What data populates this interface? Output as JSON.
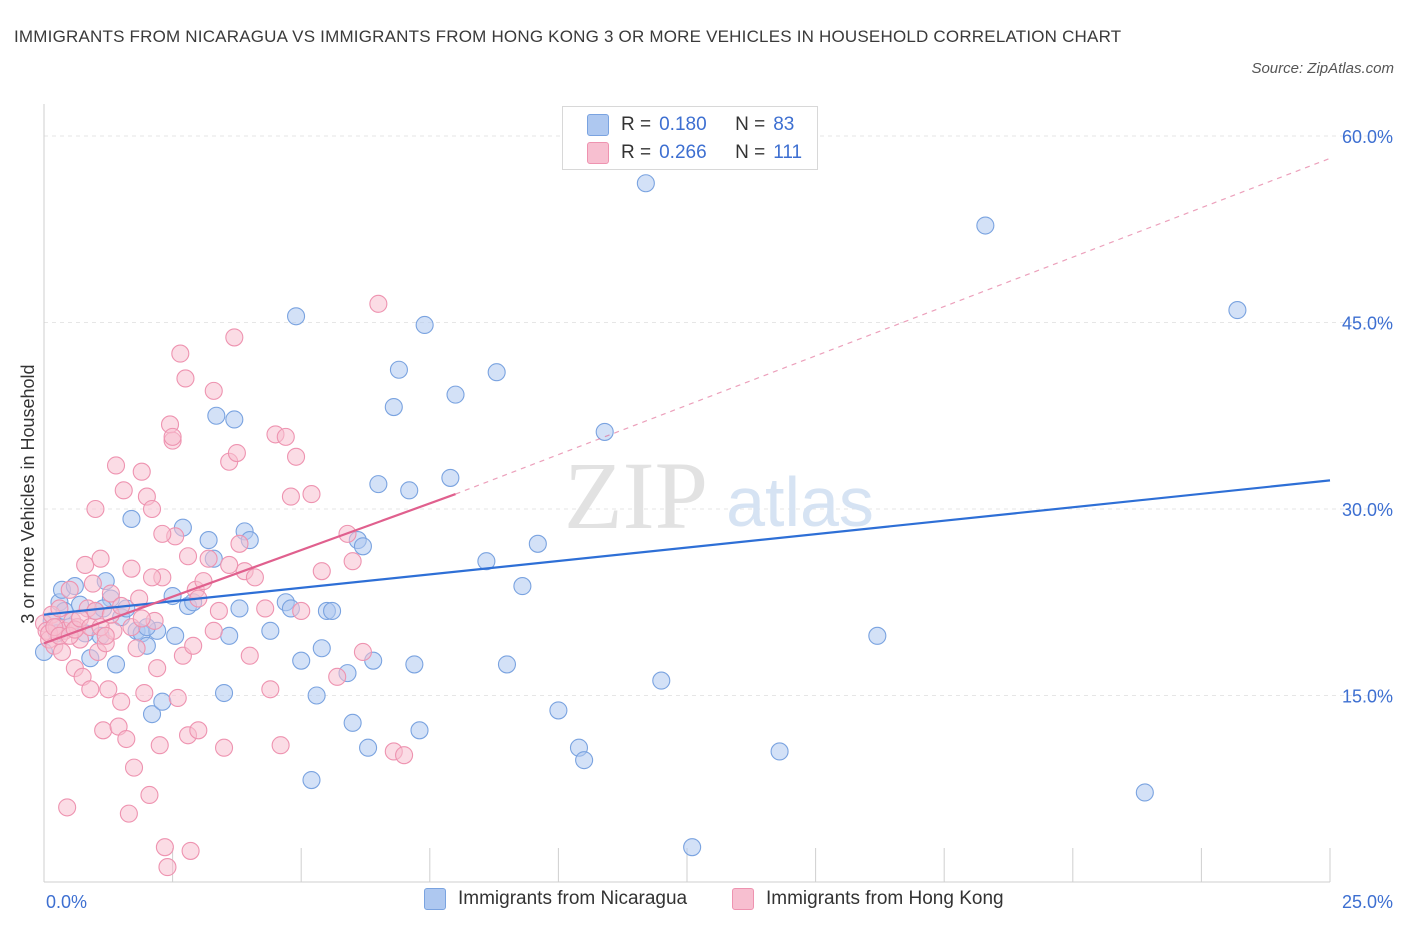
{
  "title": "IMMIGRANTS FROM NICARAGUA VS IMMIGRANTS FROM HONG KONG 3 OR MORE VEHICLES IN HOUSEHOLD CORRELATION CHART",
  "source": "Source: ZipAtlas.com",
  "watermark": {
    "zip": "ZIP",
    "atlas": "atlas"
  },
  "colors": {
    "nicaragua_fill": "#aec8f0",
    "nicaragua_stroke": "#7aa3e0",
    "nicaragua_line": "#2e6fd6",
    "hongkong_fill": "#f7bfd0",
    "hongkong_stroke": "#ee93b0",
    "hongkong_line": "#e0608e",
    "axis_label": "#3d6fd1",
    "grid": "#e6e6e6"
  },
  "legend": {
    "rows": [
      {
        "r_label": "R =",
        "r_value": "0.180",
        "n_label": "N =",
        "n_value": "83",
        "color": "#aec8f0"
      },
      {
        "r_label": "R =",
        "r_value": "0.266",
        "n_label": "N =",
        "n_value": "111",
        "color": "#f7bfd0"
      }
    ]
  },
  "bottom_legend": [
    {
      "label": "Immigrants from Nicaragua",
      "color": "#aec8f0"
    },
    {
      "label": "Immigrants from Hong Kong",
      "color": "#f7bfd0"
    }
  ],
  "chart_data": {
    "type": "scatter",
    "title": "IMMIGRANTS FROM NICARAGUA VS IMMIGRANTS FROM HONG KONG 3 OR MORE VEHICLES IN HOUSEHOLD CORRELATION CHART",
    "xlabel": "",
    "ylabel": "3 or more Vehicles in Household",
    "xlim": [
      0,
      25
    ],
    "ylim": [
      0,
      60
    ],
    "x_tick_labels": [
      "0.0%",
      "25.0%"
    ],
    "y_ticks": [
      15,
      30,
      45,
      60
    ],
    "y_tick_labels": [
      "15.0%",
      "30.0%",
      "45.0%",
      "60.0%"
    ],
    "grid": true,
    "legend_position": "top-center",
    "series": [
      {
        "name": "Immigrants from Nicaragua",
        "r": 0.18,
        "n": 83,
        "trend": {
          "x": [
            0,
            25
          ],
          "y": [
            21.5,
            32.3
          ],
          "dashed_to": null
        },
        "points": [
          [
            0.0,
            18.5
          ],
          [
            0.3,
            22.5
          ],
          [
            0.35,
            23.5
          ],
          [
            0.4,
            21.8
          ],
          [
            0.5,
            20.5
          ],
          [
            0.6,
            23.8
          ],
          [
            0.7,
            22.3
          ],
          [
            0.8,
            20.0
          ],
          [
            0.9,
            18.0
          ],
          [
            1.0,
            21.8
          ],
          [
            1.1,
            19.8
          ],
          [
            1.2,
            24.2
          ],
          [
            1.3,
            22.8
          ],
          [
            1.4,
            17.5
          ],
          [
            1.5,
            21.3
          ],
          [
            1.6,
            22.0
          ],
          [
            1.7,
            29.2
          ],
          [
            1.8,
            20.2
          ],
          [
            1.9,
            20.0
          ],
          [
            2.0,
            19.0
          ],
          [
            2.1,
            13.5
          ],
          [
            2.2,
            20.2
          ],
          [
            2.3,
            14.5
          ],
          [
            2.5,
            23.0
          ],
          [
            2.55,
            19.8
          ],
          [
            2.7,
            28.5
          ],
          [
            2.8,
            22.2
          ],
          [
            2.9,
            22.5
          ],
          [
            3.2,
            27.5
          ],
          [
            3.3,
            26.0
          ],
          [
            3.35,
            37.5
          ],
          [
            3.5,
            15.2
          ],
          [
            3.6,
            19.8
          ],
          [
            3.7,
            37.2
          ],
          [
            3.8,
            22.0
          ],
          [
            3.9,
            28.2
          ],
          [
            4.0,
            27.5
          ],
          [
            4.4,
            20.2
          ],
          [
            4.7,
            22.5
          ],
          [
            4.8,
            22.0
          ],
          [
            4.9,
            45.5
          ],
          [
            5.0,
            17.8
          ],
          [
            5.2,
            8.2
          ],
          [
            5.3,
            15.0
          ],
          [
            5.4,
            18.8
          ],
          [
            5.5,
            21.8
          ],
          [
            5.6,
            21.8
          ],
          [
            5.9,
            16.8
          ],
          [
            6.0,
            12.8
          ],
          [
            6.1,
            27.5
          ],
          [
            6.2,
            27.0
          ],
          [
            6.3,
            10.8
          ],
          [
            6.4,
            17.8
          ],
          [
            6.5,
            32.0
          ],
          [
            6.8,
            38.2
          ],
          [
            6.9,
            41.2
          ],
          [
            7.1,
            31.5
          ],
          [
            7.2,
            17.5
          ],
          [
            7.3,
            12.2
          ],
          [
            7.4,
            44.8
          ],
          [
            7.9,
            32.5
          ],
          [
            8.0,
            39.2
          ],
          [
            8.6,
            25.8
          ],
          [
            8.8,
            41.0
          ],
          [
            9.0,
            17.5
          ],
          [
            9.3,
            23.8
          ],
          [
            9.6,
            27.2
          ],
          [
            10.0,
            13.8
          ],
          [
            10.4,
            10.8
          ],
          [
            10.5,
            9.8
          ],
          [
            10.9,
            36.2
          ],
          [
            11.7,
            56.2
          ],
          [
            12.0,
            16.2
          ],
          [
            12.6,
            2.8
          ],
          [
            14.3,
            10.5
          ],
          [
            16.2,
            19.8
          ],
          [
            18.3,
            52.8
          ],
          [
            21.4,
            7.2
          ],
          [
            23.2,
            46.0
          ],
          [
            0.15,
            21.0
          ],
          [
            0.25,
            20.0
          ],
          [
            1.15,
            22.0
          ],
          [
            2.0,
            20.5
          ]
        ]
      },
      {
        "name": "Immigrants from Hong Kong",
        "r": 0.266,
        "n": 111,
        "trend": {
          "x": [
            0,
            8
          ],
          "y": [
            19.2,
            31.2
          ],
          "dashed_to": [
            25,
            58.2
          ]
        },
        "points": [
          [
            0.0,
            20.8
          ],
          [
            0.05,
            20.2
          ],
          [
            0.1,
            19.5
          ],
          [
            0.15,
            21.5
          ],
          [
            0.2,
            19.0
          ],
          [
            0.25,
            20.5
          ],
          [
            0.3,
            22.0
          ],
          [
            0.35,
            18.5
          ],
          [
            0.4,
            20.2
          ],
          [
            0.45,
            6.0
          ],
          [
            0.5,
            23.5
          ],
          [
            0.55,
            21.0
          ],
          [
            0.6,
            17.2
          ],
          [
            0.65,
            20.5
          ],
          [
            0.7,
            19.5
          ],
          [
            0.75,
            16.5
          ],
          [
            0.8,
            25.5
          ],
          [
            0.85,
            22.0
          ],
          [
            0.9,
            15.5
          ],
          [
            0.95,
            24.0
          ],
          [
            1.0,
            30.0
          ],
          [
            1.05,
            18.5
          ],
          [
            1.1,
            26.0
          ],
          [
            1.15,
            12.2
          ],
          [
            1.2,
            19.2
          ],
          [
            1.25,
            15.5
          ],
          [
            1.3,
            23.2
          ],
          [
            1.35,
            20.2
          ],
          [
            1.4,
            33.5
          ],
          [
            1.45,
            12.5
          ],
          [
            1.5,
            14.5
          ],
          [
            1.55,
            31.5
          ],
          [
            1.6,
            11.5
          ],
          [
            1.65,
            5.5
          ],
          [
            1.7,
            25.2
          ],
          [
            1.75,
            9.2
          ],
          [
            1.8,
            18.8
          ],
          [
            1.85,
            22.8
          ],
          [
            1.9,
            33.0
          ],
          [
            1.95,
            15.2
          ],
          [
            2.0,
            31.0
          ],
          [
            2.05,
            7.0
          ],
          [
            2.1,
            30.0
          ],
          [
            2.15,
            21.0
          ],
          [
            2.2,
            17.2
          ],
          [
            2.25,
            11.0
          ],
          [
            2.3,
            24.5
          ],
          [
            2.35,
            2.8
          ],
          [
            2.4,
            1.2
          ],
          [
            2.45,
            36.8
          ],
          [
            2.5,
            35.5
          ],
          [
            2.55,
            27.8
          ],
          [
            2.6,
            14.8
          ],
          [
            2.65,
            42.5
          ],
          [
            2.7,
            18.2
          ],
          [
            2.75,
            40.5
          ],
          [
            2.8,
            11.8
          ],
          [
            2.85,
            2.5
          ],
          [
            2.9,
            19.0
          ],
          [
            2.95,
            23.5
          ],
          [
            3.0,
            12.2
          ],
          [
            3.1,
            24.2
          ],
          [
            3.2,
            26.0
          ],
          [
            3.3,
            39.5
          ],
          [
            3.4,
            21.8
          ],
          [
            3.5,
            10.8
          ],
          [
            3.6,
            33.8
          ],
          [
            3.7,
            43.8
          ],
          [
            3.75,
            34.5
          ],
          [
            3.8,
            27.2
          ],
          [
            3.9,
            25.0
          ],
          [
            4.0,
            18.2
          ],
          [
            4.1,
            24.5
          ],
          [
            4.3,
            22.0
          ],
          [
            4.4,
            15.5
          ],
          [
            4.5,
            36.0
          ],
          [
            4.6,
            11.0
          ],
          [
            4.7,
            35.8
          ],
          [
            4.8,
            31.0
          ],
          [
            4.9,
            34.2
          ],
          [
            5.0,
            21.8
          ],
          [
            5.2,
            31.2
          ],
          [
            5.4,
            25.0
          ],
          [
            5.7,
            16.5
          ],
          [
            5.9,
            28.0
          ],
          [
            6.0,
            25.8
          ],
          [
            6.2,
            18.5
          ],
          [
            6.5,
            46.5
          ],
          [
            6.8,
            10.5
          ],
          [
            7.0,
            10.2
          ],
          [
            0.1,
            20.0
          ],
          [
            0.2,
            20.5
          ],
          [
            0.3,
            19.8
          ],
          [
            0.5,
            19.8
          ],
          [
            0.6,
            20.3
          ],
          [
            0.7,
            21.2
          ],
          [
            0.9,
            20.5
          ],
          [
            1.0,
            21.8
          ],
          [
            1.1,
            20.5
          ],
          [
            1.2,
            19.8
          ],
          [
            1.3,
            21.5
          ],
          [
            1.5,
            22.2
          ],
          [
            1.7,
            20.5
          ],
          [
            1.9,
            21.2
          ],
          [
            2.1,
            24.5
          ],
          [
            2.3,
            28.0
          ],
          [
            2.5,
            35.8
          ],
          [
            2.8,
            26.2
          ],
          [
            3.0,
            22.8
          ],
          [
            3.3,
            20.2
          ],
          [
            3.6,
            25.5
          ]
        ]
      }
    ]
  }
}
